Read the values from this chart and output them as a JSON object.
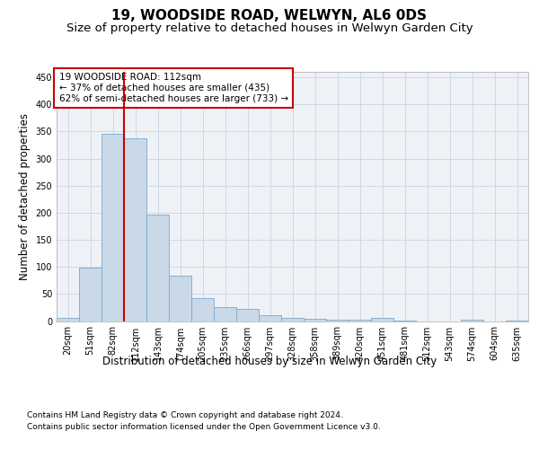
{
  "title": "19, WOODSIDE ROAD, WELWYN, AL6 0DS",
  "subtitle": "Size of property relative to detached houses in Welwyn Garden City",
  "xlabel": "Distribution of detached houses by size in Welwyn Garden City",
  "ylabel": "Number of detached properties",
  "footnote1": "Contains HM Land Registry data © Crown copyright and database right 2024.",
  "footnote2": "Contains public sector information licensed under the Open Government Licence v3.0.",
  "bar_labels": [
    "20sqm",
    "51sqm",
    "82sqm",
    "112sqm",
    "143sqm",
    "174sqm",
    "205sqm",
    "235sqm",
    "266sqm",
    "297sqm",
    "328sqm",
    "358sqm",
    "389sqm",
    "420sqm",
    "451sqm",
    "481sqm",
    "512sqm",
    "543sqm",
    "574sqm",
    "604sqm",
    "635sqm"
  ],
  "bar_values": [
    5,
    99,
    345,
    338,
    197,
    83,
    43,
    25,
    22,
    10,
    6,
    4,
    2,
    3,
    5,
    1,
    0,
    0,
    2,
    0,
    1
  ],
  "bar_color": "#c9d9e8",
  "bar_edge_color": "#7aaan9",
  "property_size_index": 3,
  "annotation_line1": "19 WOODSIDE ROAD: 112sqm",
  "annotation_line2": "← 37% of detached houses are smaller (435)",
  "annotation_line3": "62% of semi-detached houses are larger (733) →",
  "annotation_box_color": "#ffffff",
  "annotation_box_edge": "#cc0000",
  "red_line_color": "#cc0000",
  "ylim": [
    0,
    460
  ],
  "grid_color": "#d0d8e4",
  "background_color": "#eef2f7",
  "title_fontsize": 11,
  "subtitle_fontsize": 9.5,
  "axis_label_fontsize": 8.5,
  "tick_fontsize": 7,
  "annotation_fontsize": 7.5,
  "footnote_fontsize": 6.5
}
